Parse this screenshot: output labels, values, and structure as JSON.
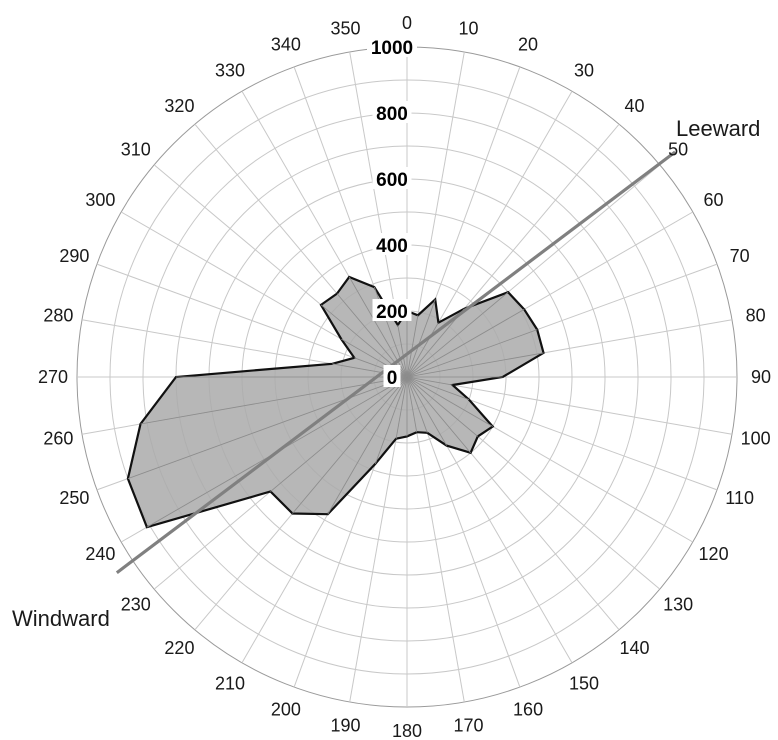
{
  "chart_data": {
    "type": "radar",
    "title": "",
    "angles": [
      0,
      10,
      20,
      30,
      40,
      50,
      60,
      70,
      80,
      90,
      100,
      110,
      120,
      130,
      140,
      150,
      160,
      170,
      180,
      190,
      200,
      210,
      220,
      230,
      240,
      250,
      260,
      270,
      280,
      290,
      300,
      310,
      320,
      330,
      340,
      350
    ],
    "angle_labels": [
      "0",
      "10",
      "20",
      "30",
      "40",
      "50",
      "60",
      "70",
      "80",
      "90",
      "100",
      "110",
      "120",
      "130",
      "140",
      "150",
      "160",
      "170",
      "180",
      "190",
      "200",
      "210",
      "220",
      "230",
      "240",
      "250",
      "260",
      "270",
      "280",
      "290",
      "300",
      "310",
      "320",
      "330",
      "340",
      "350"
    ],
    "radial_ticks": [
      0,
      200,
      400,
      600,
      800,
      1000
    ],
    "radial_tick_labels": [
      "0",
      "200",
      "400",
      "600",
      "800",
      "1000"
    ],
    "rlim": [
      0,
      1000
    ],
    "series": [
      {
        "values": [
          200,
          190,
          250,
          190,
          270,
          400,
          410,
          420,
          420,
          290,
          140,
          200,
          300,
          280,
          300,
          240,
          180,
          170,
          180,
          190,
          280,
          480,
          540,
          540,
          910,
          900,
          820,
          700,
          230,
          170,
          230,
          340,
          330,
          350,
          290,
          160
        ],
        "color": "#aaaaaa",
        "line_color": "#111111"
      }
    ],
    "annotations": [
      {
        "text": "Leeward",
        "angle": 50
      },
      {
        "text": "Windward",
        "angle": 236
      }
    ],
    "reference_line": {
      "angle_start": 50,
      "angle_end": 236,
      "color": "#808080"
    },
    "grid": true
  }
}
